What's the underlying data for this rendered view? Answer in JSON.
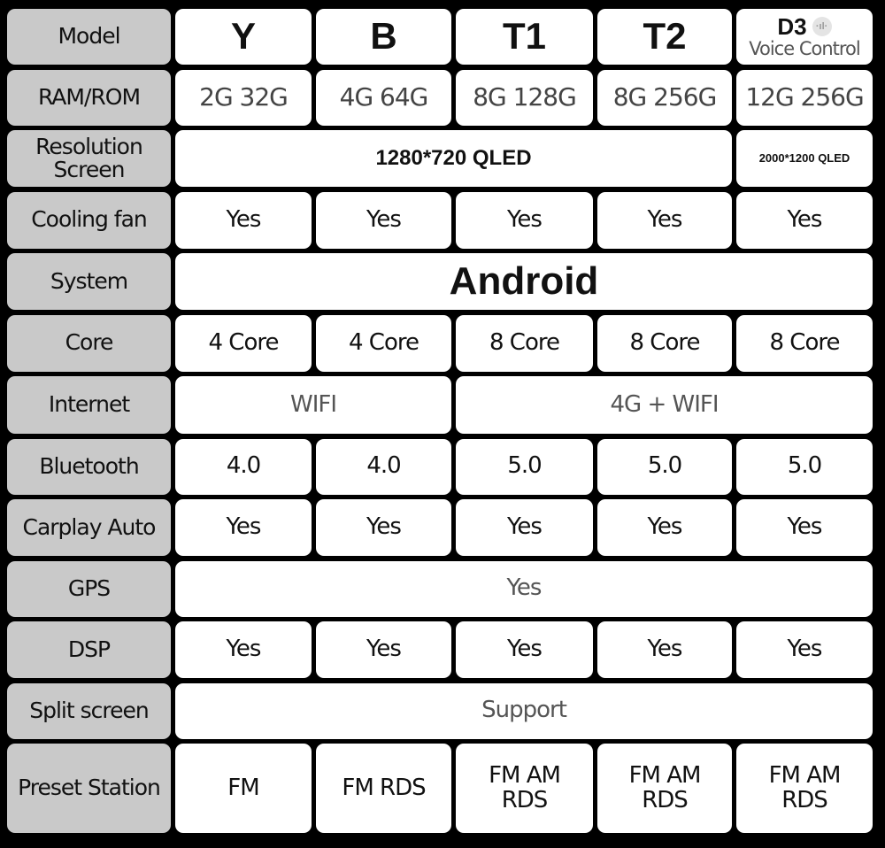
{
  "rows": [
    {
      "label": "Model",
      "kind": "model",
      "cells": [
        {
          "text": "Y"
        },
        {
          "text": "B"
        },
        {
          "text": "T1"
        },
        {
          "text": "T2"
        },
        {
          "text": "D3",
          "subtext": "Voice Control",
          "icon": "voice-wave-icon"
        }
      ]
    },
    {
      "label": "RAM/ROM",
      "kind": "ram",
      "cells": [
        {
          "text": "2G 32G"
        },
        {
          "text": "4G 64G"
        },
        {
          "text": "8G 128G"
        },
        {
          "text": "8G 256G"
        },
        {
          "text": "12G 256G"
        }
      ]
    },
    {
      "label": "Resolution Screen",
      "kind": "res",
      "cells": [
        {
          "text": "1280*720 QLED",
          "span": 4
        },
        {
          "text": "2000*1200 QLED",
          "small": true
        }
      ]
    },
    {
      "label": "Cooling fan",
      "cells": [
        {
          "text": "Yes"
        },
        {
          "text": "Yes"
        },
        {
          "text": "Yes"
        },
        {
          "text": "Yes"
        },
        {
          "text": "Yes"
        }
      ]
    },
    {
      "label": "System",
      "kind": "big",
      "cells": [
        {
          "text": "Android",
          "span": 5
        }
      ]
    },
    {
      "label": "Core",
      "cells": [
        {
          "text": "4 Core"
        },
        {
          "text": "4 Core"
        },
        {
          "text": "8 Core"
        },
        {
          "text": "8 Core"
        },
        {
          "text": "8 Core"
        }
      ]
    },
    {
      "label": "Internet",
      "kind": "grey",
      "cells": [
        {
          "text": "WIFI",
          "span": 2
        },
        {
          "text": "4G + WIFI",
          "span": 3
        }
      ]
    },
    {
      "label": "Bluetooth",
      "cells": [
        {
          "text": "4.0"
        },
        {
          "text": "4.0"
        },
        {
          "text": "5.0"
        },
        {
          "text": "5.0"
        },
        {
          "text": "5.0"
        }
      ]
    },
    {
      "label": "Carplay Auto",
      "cells": [
        {
          "text": "Yes"
        },
        {
          "text": "Yes"
        },
        {
          "text": "Yes"
        },
        {
          "text": "Yes"
        },
        {
          "text": "Yes"
        }
      ]
    },
    {
      "label": "GPS",
      "kind": "grey",
      "cells": [
        {
          "text": "Yes",
          "span": 5
        }
      ]
    },
    {
      "label": "DSP",
      "cells": [
        {
          "text": "Yes"
        },
        {
          "text": "Yes"
        },
        {
          "text": "Yes"
        },
        {
          "text": "Yes"
        },
        {
          "text": "Yes"
        }
      ]
    },
    {
      "label": "Split screen",
      "kind": "grey",
      "cells": [
        {
          "text": "Support",
          "span": 5
        }
      ]
    },
    {
      "label": "Preset Station",
      "cells": [
        {
          "text": "FM"
        },
        {
          "text": "FM RDS"
        },
        {
          "text": "FM AM RDS"
        },
        {
          "text": "FM AM RDS"
        },
        {
          "text": "FM AM RDS"
        }
      ]
    }
  ]
}
